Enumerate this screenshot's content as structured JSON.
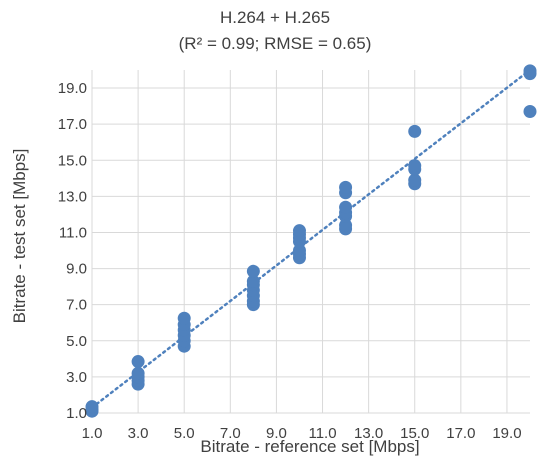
{
  "chart_data": {
    "type": "scatter",
    "title": "H.264 + H.265",
    "subtitle": "(R² = 0.99; RMSE = 0.65)",
    "xlabel": "Bitrate - reference set [Mbps]",
    "ylabel": "Bitrate - test set [Mbps]",
    "xlim": [
      1.0,
      20.0
    ],
    "ylim": [
      1.0,
      20.0
    ],
    "x_ticks": [
      "1.0",
      "3.0",
      "5.0",
      "7.0",
      "9.0",
      "11.0",
      "13.0",
      "15.0",
      "17.0",
      "19.0"
    ],
    "y_ticks": [
      "1.0",
      "3.0",
      "5.0",
      "7.0",
      "9.0",
      "11.0",
      "13.0",
      "15.0",
      "17.0",
      "19.0"
    ],
    "grid": true,
    "marker_color": "#4f81bd",
    "trendline": {
      "style": "dotted",
      "color": "#4f81bd",
      "from": [
        1.0,
        1.3
      ],
      "to": [
        20.0,
        20.0
      ]
    },
    "points": [
      {
        "x": 1,
        "y": 1.1
      },
      {
        "x": 1,
        "y": 1.2
      },
      {
        "x": 1,
        "y": 1.35
      },
      {
        "x": 3,
        "y": 2.6
      },
      {
        "x": 3,
        "y": 2.8
      },
      {
        "x": 3,
        "y": 3.0
      },
      {
        "x": 3,
        "y": 3.2
      },
      {
        "x": 3,
        "y": 3.85
      },
      {
        "x": 5,
        "y": 4.7
      },
      {
        "x": 5,
        "y": 5.0
      },
      {
        "x": 5,
        "y": 5.3
      },
      {
        "x": 5,
        "y": 5.6
      },
      {
        "x": 5,
        "y": 5.9
      },
      {
        "x": 5,
        "y": 6.25
      },
      {
        "x": 8,
        "y": 7.0
      },
      {
        "x": 8,
        "y": 7.2
      },
      {
        "x": 8,
        "y": 7.5
      },
      {
        "x": 8,
        "y": 7.8
      },
      {
        "x": 8,
        "y": 8.1
      },
      {
        "x": 8,
        "y": 8.3
      },
      {
        "x": 8,
        "y": 8.85
      },
      {
        "x": 10,
        "y": 9.6
      },
      {
        "x": 10,
        "y": 9.8
      },
      {
        "x": 10,
        "y": 10.0
      },
      {
        "x": 10,
        "y": 10.5
      },
      {
        "x": 10,
        "y": 10.7
      },
      {
        "x": 10,
        "y": 10.9
      },
      {
        "x": 10,
        "y": 11.1
      },
      {
        "x": 12,
        "y": 11.2
      },
      {
        "x": 12,
        "y": 11.4
      },
      {
        "x": 12,
        "y": 11.9
      },
      {
        "x": 12,
        "y": 12.1
      },
      {
        "x": 12,
        "y": 12.4
      },
      {
        "x": 12,
        "y": 13.2
      },
      {
        "x": 12,
        "y": 13.5
      },
      {
        "x": 15,
        "y": 13.7
      },
      {
        "x": 15,
        "y": 13.9
      },
      {
        "x": 15,
        "y": 14.5
      },
      {
        "x": 15,
        "y": 14.7
      },
      {
        "x": 15,
        "y": 16.6
      },
      {
        "x": 20,
        "y": 17.7
      },
      {
        "x": 20,
        "y": 19.8
      },
      {
        "x": 20,
        "y": 19.95
      }
    ]
  }
}
